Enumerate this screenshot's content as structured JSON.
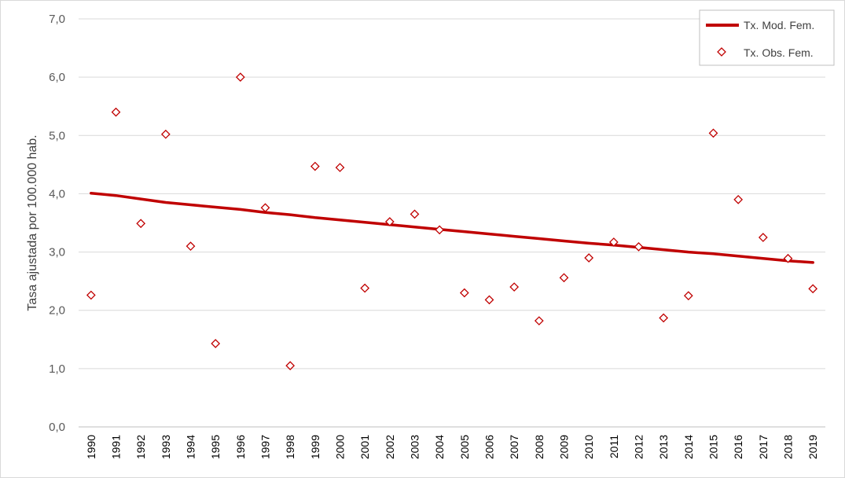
{
  "chart_data": {
    "type": "line",
    "title": "",
    "xlabel": "",
    "ylabel": "Tasa ajustada por 100.000 hab.",
    "ylim": [
      0,
      7
    ],
    "y_ticks": [
      "0,0",
      "1,0",
      "2,0",
      "3,0",
      "4,0",
      "5,0",
      "6,0",
      "7,0"
    ],
    "grid": "horizontal",
    "legend_position": "top-right",
    "categories": [
      "1990",
      "1991",
      "1992",
      "1993",
      "1994",
      "1995",
      "1996",
      "1997",
      "1998",
      "1999",
      "2000",
      "2001",
      "2002",
      "2003",
      "2004",
      "2005",
      "2006",
      "2007",
      "2008",
      "2009",
      "2010",
      "2011",
      "2012",
      "2013",
      "2014",
      "2015",
      "2016",
      "2017",
      "2018",
      "2019"
    ],
    "series": [
      {
        "name": "Tx. Mod. Fem.",
        "style": "line",
        "color": "#c00000",
        "values": [
          4.01,
          3.97,
          3.91,
          3.85,
          3.81,
          3.77,
          3.73,
          3.68,
          3.64,
          3.59,
          3.55,
          3.51,
          3.47,
          3.43,
          3.39,
          3.35,
          3.31,
          3.27,
          3.23,
          3.19,
          3.15,
          3.12,
          3.08,
          3.04,
          3.0,
          2.97,
          2.93,
          2.89,
          2.85,
          2.82
        ]
      },
      {
        "name": "Tx. Obs. Fem.",
        "style": "scatter",
        "marker": "diamond",
        "color": "#c00000",
        "values": [
          2.26,
          5.4,
          3.49,
          5.02,
          3.1,
          1.43,
          6.0,
          3.76,
          1.05,
          4.47,
          4.45,
          2.38,
          3.52,
          3.65,
          3.38,
          2.3,
          2.18,
          2.4,
          1.82,
          2.56,
          2.9,
          3.17,
          3.09,
          1.87,
          2.25,
          5.04,
          3.9,
          3.25,
          2.89,
          2.37
        ]
      }
    ]
  }
}
